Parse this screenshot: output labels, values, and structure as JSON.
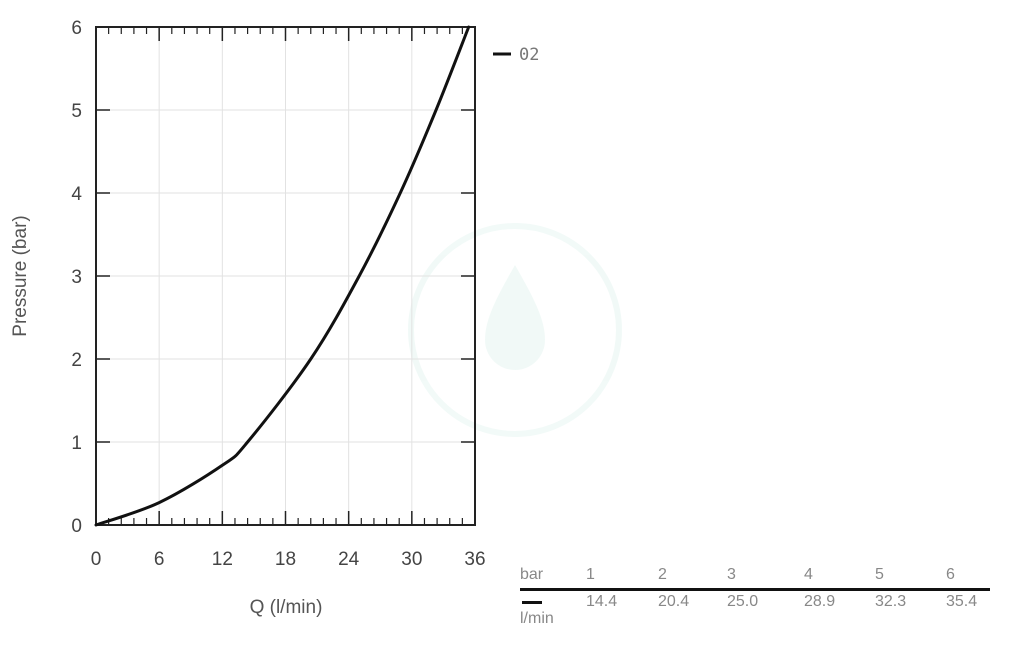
{
  "chart_data": {
    "type": "line",
    "xlabel": "Q (l/min)",
    "ylabel": "Pressure (bar)",
    "xlim": [
      0,
      36
    ],
    "ylim": [
      0,
      6
    ],
    "xticks": [
      "0",
      "6",
      "12",
      "18",
      "24",
      "30",
      "36"
    ],
    "yticks": [
      "0",
      "1",
      "2",
      "3",
      "4",
      "5",
      "6"
    ],
    "grid": true,
    "legend_position": "top-right",
    "series": [
      {
        "name": "02",
        "color": "#111111",
        "x": [
          0,
          6,
          12,
          14.4,
          20.4,
          25.0,
          28.9,
          32.3,
          35.4
        ],
        "y": [
          0,
          0.27,
          0.72,
          1,
          2,
          3,
          4,
          5,
          6
        ]
      }
    ]
  },
  "table": {
    "header_label": "bar",
    "unit_label": "l/min",
    "pressures": [
      "1",
      "2",
      "3",
      "4",
      "5",
      "6"
    ],
    "flows": [
      "14.4",
      "20.4",
      "25.0",
      "28.9",
      "32.3",
      "35.4"
    ]
  }
}
